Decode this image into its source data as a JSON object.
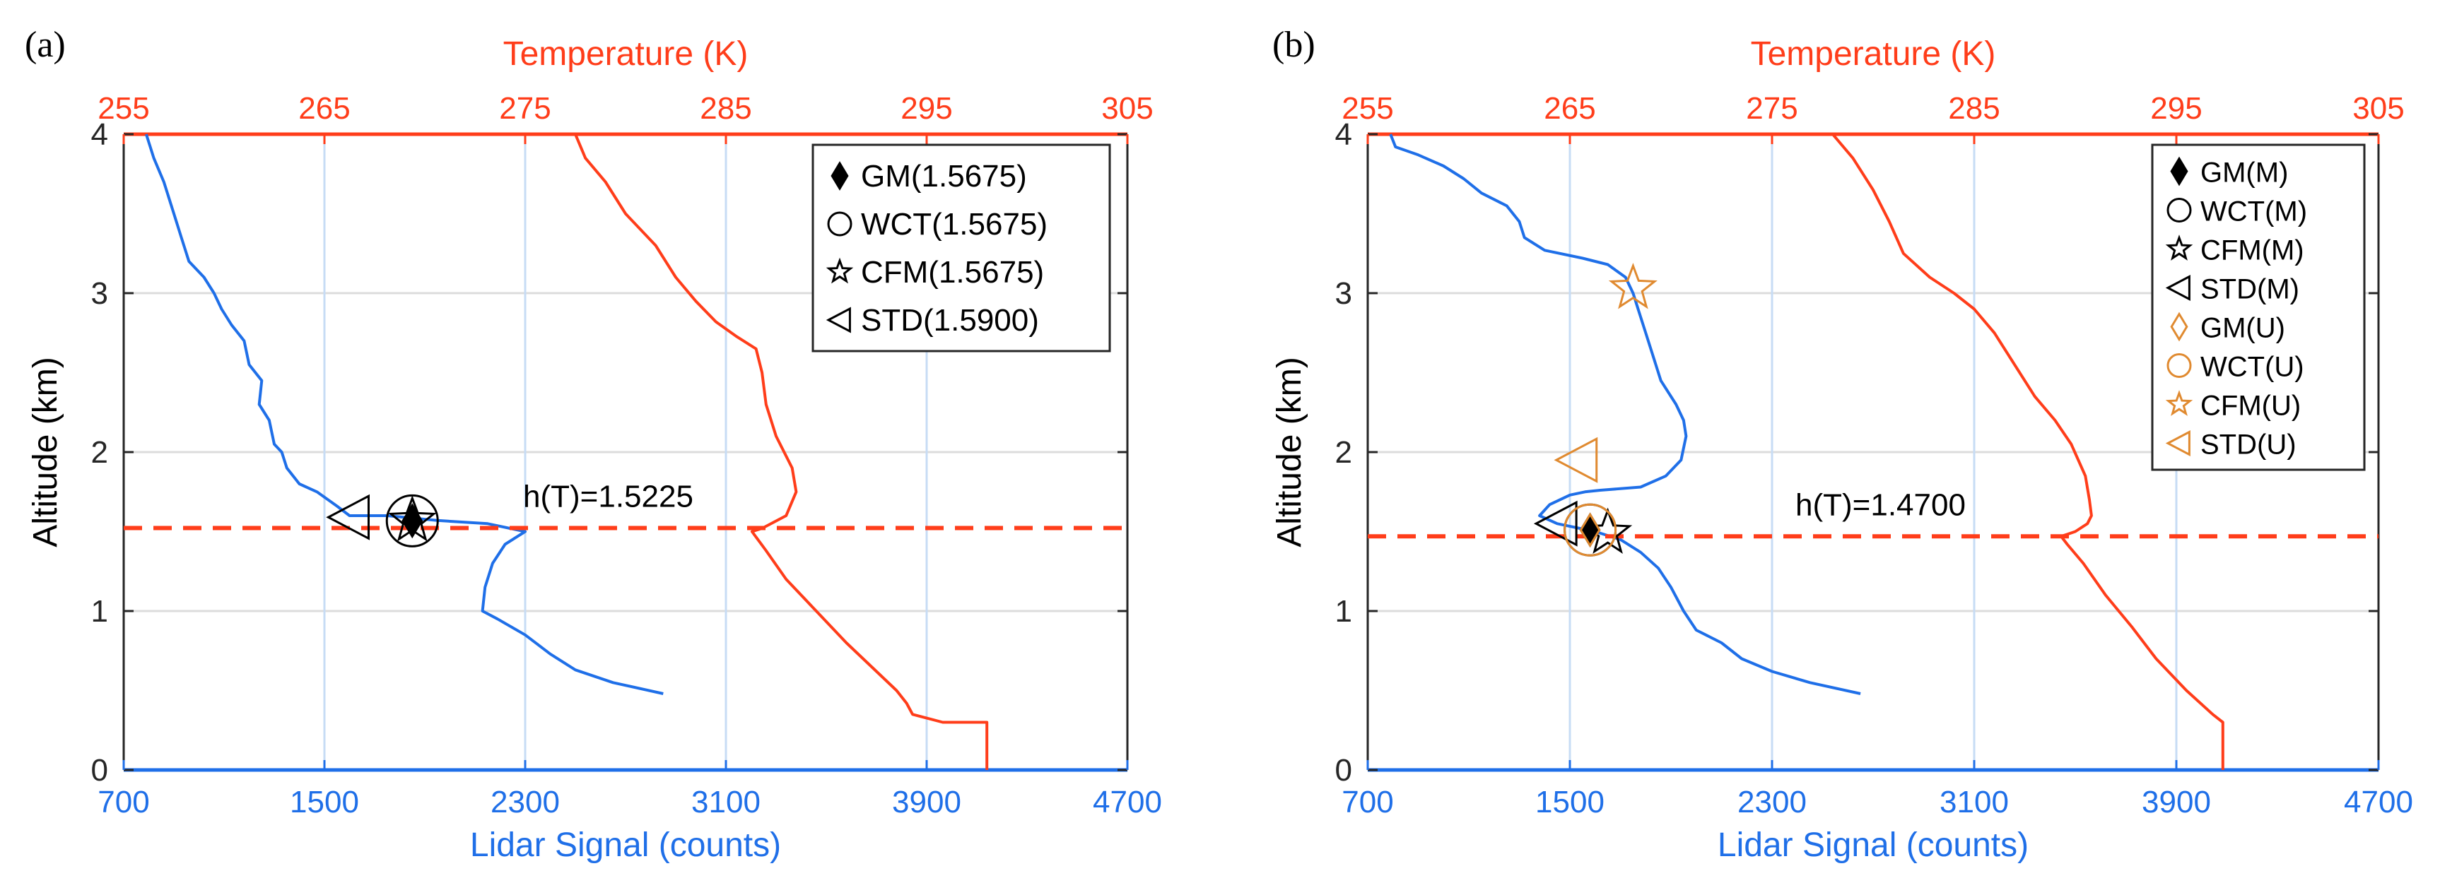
{
  "chart_data": [
    {
      "type": "line",
      "panel_label": "(a)",
      "xlabel_bottom": "Lidar Signal (counts)",
      "xlabel_top": "Temperature (K)",
      "ylabel": "Altitude (km)",
      "xlim_bottom": [
        700,
        4700
      ],
      "xlim_top": [
        255,
        305
      ],
      "ylim": [
        0,
        4
      ],
      "xticks_bottom": [
        "700",
        "1500",
        "2300",
        "3100",
        "3900",
        "4700"
      ],
      "xticks_top": [
        "255",
        "265",
        "275",
        "285",
        "295",
        "305"
      ],
      "yticks": [
        "0",
        "1",
        "2",
        "3",
        "4"
      ],
      "grid": true,
      "colors": {
        "signal": "#1f6fe8",
        "temperature": "#ff3d1a",
        "tropopause": "#ff3d1a",
        "markers": "#000000"
      },
      "series": [
        {
          "name": "Lidar Signal",
          "axis": "bottom",
          "points": [
            [
              2850,
              0.48
            ],
            [
              2650,
              0.55
            ],
            [
              2500,
              0.63
            ],
            [
              2400,
              0.73
            ],
            [
              2300,
              0.85
            ],
            [
              2190,
              0.95
            ],
            [
              2130,
              1.0
            ],
            [
              2140,
              1.15
            ],
            [
              2170,
              1.3
            ],
            [
              2220,
              1.42
            ],
            [
              2300,
              1.5
            ],
            [
              2150,
              1.55
            ],
            [
              1950,
              1.57
            ],
            [
              1750,
              1.6
            ],
            [
              1600,
              1.6
            ],
            [
              1550,
              1.66
            ],
            [
              1470,
              1.75
            ],
            [
              1400,
              1.8
            ],
            [
              1350,
              1.9
            ],
            [
              1330,
              2.0
            ],
            [
              1300,
              2.05
            ],
            [
              1280,
              2.2
            ],
            [
              1240,
              2.3
            ],
            [
              1250,
              2.45
            ],
            [
              1200,
              2.55
            ],
            [
              1180,
              2.7
            ],
            [
              1130,
              2.8
            ],
            [
              1090,
              2.9
            ],
            [
              1060,
              3.0
            ],
            [
              1020,
              3.1
            ],
            [
              960,
              3.2
            ],
            [
              930,
              3.35
            ],
            [
              900,
              3.5
            ],
            [
              860,
              3.7
            ],
            [
              820,
              3.85
            ],
            [
              790,
              4.0
            ]
          ]
        },
        {
          "name": "Temperature",
          "axis": "top",
          "points": [
            [
              277.5,
              4.0
            ],
            [
              278.0,
              3.85
            ],
            [
              279.0,
              3.7
            ],
            [
              280.0,
              3.5
            ],
            [
              281.5,
              3.3
            ],
            [
              282.5,
              3.1
            ],
            [
              283.5,
              2.95
            ],
            [
              284.5,
              2.82
            ],
            [
              285.5,
              2.73
            ],
            [
              286.5,
              2.65
            ],
            [
              286.8,
              2.5
            ],
            [
              287.0,
              2.3
            ],
            [
              287.5,
              2.1
            ],
            [
              288.3,
              1.9
            ],
            [
              288.5,
              1.75
            ],
            [
              288.0,
              1.6
            ],
            [
              286.8,
              1.52
            ],
            [
              286.3,
              1.5
            ],
            [
              287.0,
              1.38
            ],
            [
              288.0,
              1.2
            ],
            [
              289.5,
              1.0
            ],
            [
              291.0,
              0.8
            ],
            [
              292.5,
              0.62
            ],
            [
              293.5,
              0.5
            ],
            [
              294.0,
              0.42
            ],
            [
              294.3,
              0.35
            ],
            [
              295.8,
              0.3
            ],
            [
              298.0,
              0.3
            ],
            [
              298.0,
              0.0
            ]
          ]
        }
      ],
      "tropopause_altitude": 1.5225,
      "annotation": "h(T)=1.5225",
      "markers": [
        {
          "shape": "diamond",
          "filled": true,
          "color": "#000000",
          "x": 1850,
          "y": 1.5675
        },
        {
          "shape": "circle",
          "filled": false,
          "color": "#000000",
          "x": 1850,
          "y": 1.5675
        },
        {
          "shape": "star",
          "filled": false,
          "color": "#000000",
          "x": 1850,
          "y": 1.5675
        },
        {
          "shape": "triangle-left",
          "filled": false,
          "color": "#000000",
          "x": 1600,
          "y": 1.59
        }
      ],
      "legend": {
        "placement": "top-right",
        "entries": [
          {
            "label": "GM(1.5675)",
            "shape": "diamond",
            "filled": true,
            "color": "#000000"
          },
          {
            "label": "WCT(1.5675)",
            "shape": "circle",
            "filled": false,
            "color": "#000000"
          },
          {
            "label": "CFM(1.5675)",
            "shape": "star",
            "filled": false,
            "color": "#000000"
          },
          {
            "label": "STD(1.5900)",
            "shape": "triangle-left",
            "filled": false,
            "color": "#000000"
          }
        ]
      }
    },
    {
      "type": "line",
      "panel_label": "(b)",
      "xlabel_bottom": "Lidar Signal (counts)",
      "xlabel_top": "Temperature (K)",
      "ylabel": "Altitude (km)",
      "xlim_bottom": [
        700,
        4700
      ],
      "xlim_top": [
        255,
        305
      ],
      "ylim": [
        0,
        4
      ],
      "xticks_bottom": [
        "700",
        "1500",
        "2300",
        "3100",
        "3900",
        "4700"
      ],
      "xticks_top": [
        "255",
        "265",
        "275",
        "285",
        "295",
        "305"
      ],
      "yticks": [
        "0",
        "1",
        "2",
        "3",
        "4"
      ],
      "grid": true,
      "colors": {
        "signal": "#1f6fe8",
        "temperature": "#ff3d1a",
        "tropopause": "#ff3d1a",
        "markers": "#000000",
        "markers_u": "#e08a30"
      },
      "series": [
        {
          "name": "Lidar Signal",
          "axis": "bottom",
          "points": [
            [
              2650,
              0.48
            ],
            [
              2450,
              0.55
            ],
            [
              2300,
              0.62
            ],
            [
              2180,
              0.7
            ],
            [
              2100,
              0.8
            ],
            [
              2000,
              0.88
            ],
            [
              1950,
              1.0
            ],
            [
              1900,
              1.15
            ],
            [
              1850,
              1.27
            ],
            [
              1780,
              1.37
            ],
            [
              1700,
              1.45
            ],
            [
              1600,
              1.5
            ],
            [
              1450,
              1.55
            ],
            [
              1380,
              1.6
            ],
            [
              1420,
              1.67
            ],
            [
              1500,
              1.73
            ],
            [
              1560,
              1.75
            ],
            [
              1620,
              1.76
            ],
            [
              1780,
              1.78
            ],
            [
              1880,
              1.85
            ],
            [
              1940,
              1.95
            ],
            [
              1960,
              2.1
            ],
            [
              1950,
              2.2
            ],
            [
              1920,
              2.3
            ],
            [
              1860,
              2.45
            ],
            [
              1830,
              2.6
            ],
            [
              1800,
              2.75
            ],
            [
              1770,
              2.9
            ],
            [
              1750,
              3.0
            ],
            [
              1720,
              3.1
            ],
            [
              1650,
              3.18
            ],
            [
              1550,
              3.22
            ],
            [
              1400,
              3.27
            ],
            [
              1320,
              3.35
            ],
            [
              1300,
              3.45
            ],
            [
              1250,
              3.55
            ],
            [
              1150,
              3.63
            ],
            [
              1080,
              3.72
            ],
            [
              1000,
              3.8
            ],
            [
              900,
              3.87
            ],
            [
              810,
              3.92
            ],
            [
              790,
              4.0
            ]
          ]
        },
        {
          "name": "Temperature",
          "axis": "top",
          "points": [
            [
              278.0,
              4.0
            ],
            [
              279.0,
              3.85
            ],
            [
              280.0,
              3.65
            ],
            [
              280.8,
              3.45
            ],
            [
              281.5,
              3.25
            ],
            [
              282.8,
              3.1
            ],
            [
              284.0,
              3.0
            ],
            [
              285.0,
              2.9
            ],
            [
              286.0,
              2.75
            ],
            [
              287.0,
              2.55
            ],
            [
              288.0,
              2.35
            ],
            [
              289.0,
              2.2
            ],
            [
              289.8,
              2.05
            ],
            [
              290.5,
              1.85
            ],
            [
              290.7,
              1.7
            ],
            [
              290.8,
              1.6
            ],
            [
              290.6,
              1.55
            ],
            [
              290.0,
              1.5
            ],
            [
              289.3,
              1.47
            ],
            [
              289.6,
              1.42
            ],
            [
              290.4,
              1.3
            ],
            [
              291.5,
              1.1
            ],
            [
              292.8,
              0.9
            ],
            [
              294.0,
              0.7
            ],
            [
              295.5,
              0.5
            ],
            [
              296.8,
              0.35
            ],
            [
              297.3,
              0.3
            ],
            [
              297.3,
              0.0
            ]
          ]
        }
      ],
      "tropopause_altitude": 1.47,
      "annotation": "h(T)=1.4700",
      "markers": [
        {
          "shape": "diamond",
          "filled": true,
          "color": "#000000",
          "x": 1580,
          "y": 1.51
        },
        {
          "shape": "circle",
          "filled": false,
          "color": "#000000",
          "x": 1580,
          "y": 1.51
        },
        {
          "shape": "star",
          "filled": false,
          "color": "#000000",
          "x": 1650,
          "y": 1.49
        },
        {
          "shape": "triangle-left",
          "filled": false,
          "color": "#000000",
          "x": 1450,
          "y": 1.55
        },
        {
          "shape": "diamond",
          "filled": false,
          "color": "#e08a30",
          "x": 1580,
          "y": 1.51
        },
        {
          "shape": "circle",
          "filled": false,
          "color": "#e08a30",
          "x": 1580,
          "y": 1.51
        },
        {
          "shape": "star",
          "filled": false,
          "color": "#e08a30",
          "x": 1750,
          "y": 3.03
        },
        {
          "shape": "triangle-left",
          "filled": false,
          "color": "#e08a30",
          "x": 1530,
          "y": 1.95
        }
      ],
      "legend": {
        "placement": "top-right",
        "entries": [
          {
            "label": "GM(M)",
            "shape": "diamond",
            "filled": true,
            "color": "#000000"
          },
          {
            "label": "WCT(M)",
            "shape": "circle",
            "filled": false,
            "color": "#000000"
          },
          {
            "label": "CFM(M)",
            "shape": "star",
            "filled": false,
            "color": "#000000"
          },
          {
            "label": "STD(M)",
            "shape": "triangle-left",
            "filled": false,
            "color": "#000000"
          },
          {
            "label": "GM(U)",
            "shape": "diamond",
            "filled": false,
            "color": "#e08a30"
          },
          {
            "label": "WCT(U)",
            "shape": "circle",
            "filled": false,
            "color": "#e08a30"
          },
          {
            "label": "CFM(U)",
            "shape": "star",
            "filled": false,
            "color": "#e08a30"
          },
          {
            "label": "STD(U)",
            "shape": "triangle-left",
            "filled": false,
            "color": "#e08a30"
          }
        ]
      }
    }
  ]
}
